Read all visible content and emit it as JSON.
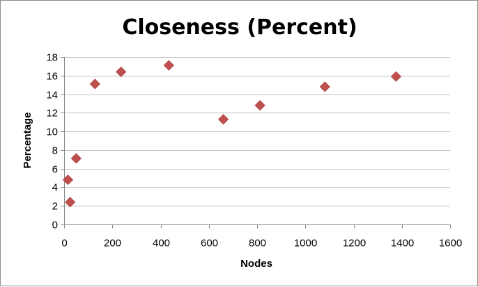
{
  "chart_data": {
    "type": "scatter",
    "title": "Closeness (Percent)",
    "xlabel": "Nodes",
    "ylabel": "Percentage",
    "xlim": [
      0,
      1600
    ],
    "ylim": [
      0,
      18
    ],
    "x_ticks": [
      0,
      200,
      400,
      600,
      800,
      1000,
      1200,
      1400,
      1600
    ],
    "y_ticks": [
      0,
      2,
      4,
      6,
      8,
      10,
      12,
      14,
      16,
      18
    ],
    "grid": "horizontal",
    "legend": "none",
    "marker": "diamond",
    "series": [
      {
        "color": "#c0504d",
        "points": [
          {
            "x": 16,
            "y": 4.8
          },
          {
            "x": 25,
            "y": 2.4
          },
          {
            "x": 50,
            "y": 7.1
          },
          {
            "x": 128,
            "y": 15.1
          },
          {
            "x": 236,
            "y": 16.4
          },
          {
            "x": 434,
            "y": 17.1
          },
          {
            "x": 660,
            "y": 11.3
          },
          {
            "x": 812,
            "y": 12.8
          },
          {
            "x": 1081,
            "y": 14.8
          },
          {
            "x": 1376,
            "y": 15.9
          }
        ]
      }
    ]
  }
}
